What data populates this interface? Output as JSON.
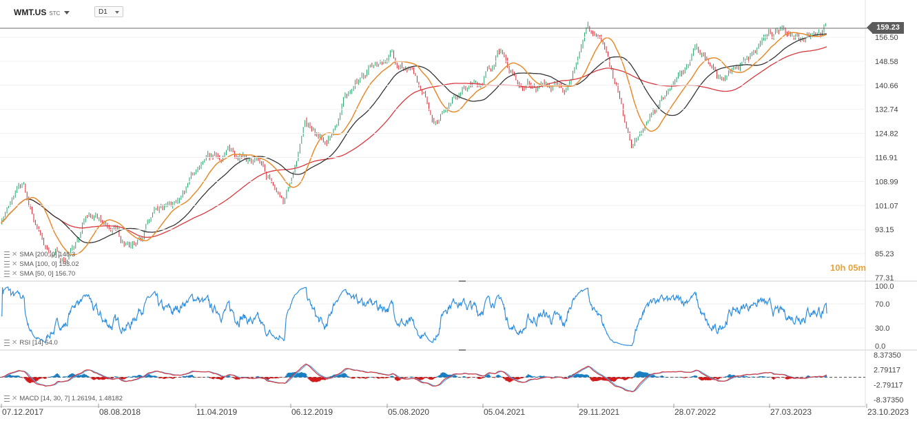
{
  "header": {
    "symbol": "WMT.US",
    "symbol_suffix": "STC",
    "timeframe": "D1"
  },
  "last_price": "159.23",
  "countdown": "10h 05m",
  "indicators": {
    "sma1": "SMA [200, 0] 148.3",
    "sma2": "SMA [100, 0] 153.02",
    "sma3": "SMA [50, 0] 156.70",
    "rsi": "RSI [14] 54.0",
    "macd": "MACD [14, 30, 7] 1.26194, 1.48182"
  },
  "colors": {
    "up": "#26a269",
    "down": "#d9262f",
    "sma200": "#d9363e",
    "sma100": "#333333",
    "sma50": "#e8892b",
    "rsi": "#2e8ee0",
    "macd_line": "#d9363e",
    "macd_signal": "#4da6e8",
    "hist_pos": "#1a7fc1",
    "hist_neg": "#d11a1a"
  },
  "chart_data": [
    {
      "type": "candlestick",
      "title": "WMT.US",
      "y_ticks": [
        "156.50",
        "148.58",
        "140.66",
        "132.74",
        "124.82",
        "116.91",
        "108.99",
        "101.07",
        "93.15",
        "85.23",
        "77.31"
      ],
      "ylim": [
        77.31,
        160.5
      ],
      "x_ticks": [
        "07.12.2017",
        "08.08.2018",
        "11.04.2019",
        "06.12.2019",
        "05.08.2020",
        "05.04.2021",
        "29.11.2021",
        "28.07.2022",
        "27.03.2023",
        "23.10.2023"
      ],
      "price_path": [
        [
          "07.12.2017",
          96
        ],
        [
          "02.2018",
          108
        ],
        [
          "03.2018",
          87
        ],
        [
          "06.2018",
          83
        ],
        [
          "08.08.2018",
          97
        ],
        [
          "10.2018",
          94
        ],
        [
          "12.2018",
          88
        ],
        [
          "02.2019",
          97
        ],
        [
          "11.04.2019",
          101
        ],
        [
          "07.2019",
          113
        ],
        [
          "09.2019",
          118
        ],
        [
          "06.12.2019",
          119
        ],
        [
          "02.2020",
          113
        ],
        [
          "03.2020",
          102
        ],
        [
          "04.2020",
          128
        ],
        [
          "06.2020",
          120
        ],
        [
          "05.08.2020",
          139
        ],
        [
          "09.2020",
          146
        ],
        [
          "11.2020",
          151
        ],
        [
          "01.2021",
          143
        ],
        [
          "02.2021",
          129
        ],
        [
          "05.04.2021",
          139
        ],
        [
          "06.2021",
          141
        ],
        [
          "08.2021",
          152
        ],
        [
          "10.2021",
          140
        ],
        [
          "29.11.2021",
          141
        ],
        [
          "01.2022",
          138
        ],
        [
          "03.2022",
          160
        ],
        [
          "04.2022",
          150
        ],
        [
          "05.2022",
          120
        ],
        [
          "28.07.2022",
          132
        ],
        [
          "10.2022",
          140
        ],
        [
          "11.2022",
          153
        ],
        [
          "01.2023",
          143
        ],
        [
          "27.03.2023",
          147
        ],
        [
          "05.2023",
          155
        ],
        [
          "07.2023",
          158
        ],
        [
          "08.2023",
          158
        ],
        [
          "10.2023",
          159.23
        ]
      ],
      "series": [
        {
          "name": "SMA [200, 0]",
          "last": 148.3
        },
        {
          "name": "SMA [100, 0]",
          "last": 153.02
        },
        {
          "name": "SMA [50, 0]",
          "last": 156.7
        }
      ],
      "last": 159.23
    },
    {
      "type": "line",
      "title": "RSI [14]",
      "y_ticks": [
        "100.0",
        "70.0",
        "30.0",
        "0.0"
      ],
      "ylim": [
        0,
        100
      ],
      "last": 54.0
    },
    {
      "type": "line",
      "title": "MACD [14, 30, 7]",
      "y_ticks": [
        "8.37350",
        "2.79117",
        "-2.79117",
        "-8.37350"
      ],
      "ylim": [
        -8.3735,
        8.3735
      ],
      "values": [
        1.26194,
        1.48182
      ]
    }
  ]
}
